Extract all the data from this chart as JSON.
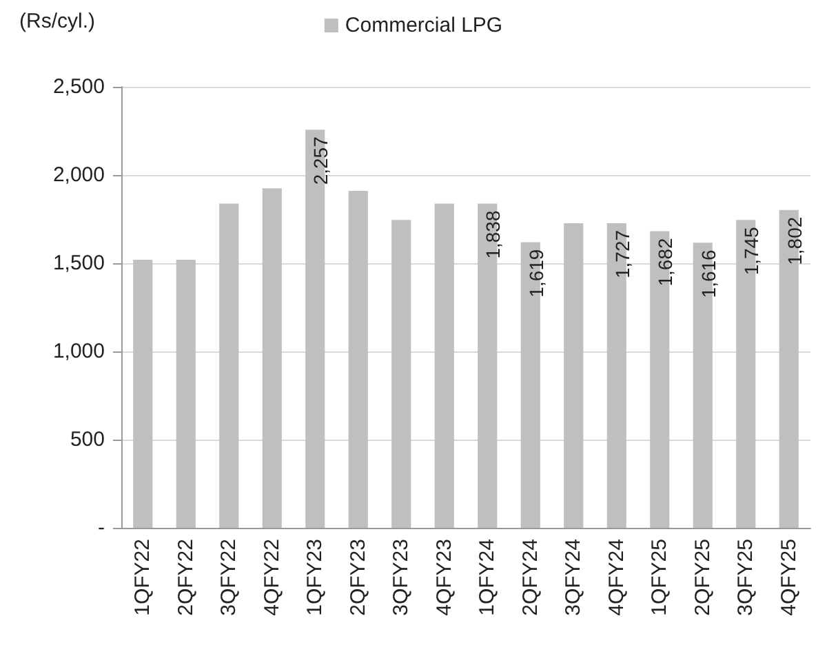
{
  "chart_data": {
    "type": "bar",
    "ylabel": "(Rs/cyl.)",
    "categories": [
      "1QFY22",
      "2QFY22",
      "3QFY22",
      "4QFY22",
      "1QFY23",
      "2QFY23",
      "3QFY23",
      "4QFY23",
      "1QFY24",
      "2QFY24",
      "3QFY24",
      "4QFY24",
      "1QFY25",
      "2QFY25",
      "3QFY25",
      "4QFY25"
    ],
    "series": [
      {
        "name": "Commercial LPG",
        "color": "#bfbfbf",
        "values": [
          1520,
          1520,
          1838,
          1925,
          2257,
          1910,
          1745,
          1838,
          1838,
          1619,
          1727,
          1727,
          1682,
          1616,
          1745,
          1802
        ],
        "value_labels": [
          null,
          null,
          null,
          null,
          "2,257",
          null,
          null,
          null,
          "1,838",
          "1,619",
          null,
          "1,727",
          "1,682",
          "1,616",
          "1,745",
          "1,802"
        ]
      }
    ],
    "ylim": [
      0,
      2500
    ],
    "yticks": [
      {
        "value": 0,
        "label": "-"
      },
      {
        "value": 500,
        "label": "500"
      },
      {
        "value": 1000,
        "label": "1,000"
      },
      {
        "value": 1500,
        "label": "1,500"
      },
      {
        "value": 2000,
        "label": "2,000"
      },
      {
        "value": 2500,
        "label": "2,500"
      }
    ],
    "grid": "y",
    "legend": "top"
  }
}
